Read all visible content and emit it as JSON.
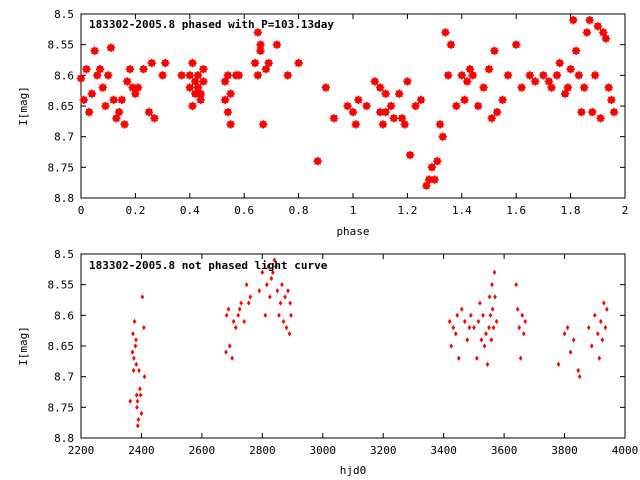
{
  "colors": {
    "marker": "#ff0000",
    "axis": "#000000",
    "background": "#ffffff"
  },
  "chart_data": [
    {
      "type": "scatter",
      "title": "183302-2005.8 phased with P=103.13day",
      "xlabel": "phase",
      "ylabel": "I[mag]",
      "xlim": [
        0,
        2
      ],
      "ylim": [
        8.5,
        8.8
      ],
      "y_inverted": true,
      "grid": false,
      "marker": "filled-star",
      "xticks": [
        0,
        0.2,
        0.4,
        0.6,
        0.8,
        1,
        1.2,
        1.4,
        1.6,
        1.8,
        2
      ],
      "xtick_labels": [
        "0",
        "0.2",
        "0.4",
        "0.6",
        "0.8",
        "1",
        "1.2",
        "1.4",
        "1.6",
        "1.8",
        "2"
      ],
      "yticks": [
        8.5,
        8.55,
        8.6,
        8.65,
        8.7,
        8.75,
        8.8
      ],
      "ytick_labels": [
        "8.5",
        "8.55",
        "8.6",
        "8.65",
        "8.7",
        "8.75",
        "8.8"
      ],
      "series": [
        {
          "x": [
            0.0,
            0.01,
            0.02,
            0.03,
            0.04,
            0.05,
            0.06,
            0.07,
            0.08,
            0.09,
            0.1,
            0.11,
            0.12,
            0.13,
            0.14,
            0.15,
            0.16,
            0.17,
            0.18,
            0.19,
            0.2,
            0.21,
            0.23,
            0.25,
            0.26,
            0.27,
            0.3,
            0.31,
            0.37,
            0.4,
            0.4,
            0.41,
            0.41,
            0.42,
            0.42,
            0.43,
            0.43,
            0.44,
            0.44,
            0.45,
            0.45,
            0.53,
            0.53,
            0.54,
            0.54,
            0.55,
            0.55,
            0.57,
            0.58,
            0.64,
            0.65,
            0.65,
            0.66,
            0.66,
            0.67,
            0.68,
            0.69,
            0.72,
            0.76,
            0.8,
            0.87,
            0.9,
            0.93,
            0.98,
            1.0,
            1.01,
            1.02,
            1.05,
            1.08,
            1.1,
            1.1,
            1.11,
            1.12,
            1.12,
            1.14,
            1.15,
            1.17,
            1.18,
            1.19,
            1.2,
            1.21,
            1.23,
            1.25,
            1.27,
            1.28,
            1.29,
            1.3,
            1.31,
            1.32,
            1.33,
            1.34,
            1.35,
            1.36,
            1.38,
            1.4,
            1.41,
            1.42,
            1.43,
            1.44,
            1.46,
            1.48,
            1.5,
            1.51,
            1.52,
            1.53,
            1.55,
            1.57,
            1.6,
            1.62,
            1.65,
            1.67,
            1.7,
            1.72,
            1.73,
            1.75,
            1.76,
            1.78,
            1.79,
            1.8,
            1.81,
            1.82,
            1.83,
            1.84,
            1.85,
            1.86,
            1.87,
            1.88,
            1.89,
            1.9,
            1.91,
            1.92,
            1.93,
            1.94,
            1.95,
            1.96
          ],
          "y": [
            8.605,
            8.64,
            8.59,
            8.66,
            8.63,
            8.56,
            8.6,
            8.59,
            8.62,
            8.65,
            8.6,
            8.555,
            8.64,
            8.67,
            8.66,
            8.64,
            8.68,
            8.61,
            8.59,
            8.62,
            8.63,
            8.62,
            8.59,
            8.66,
            8.58,
            8.67,
            8.6,
            8.58,
            8.6,
            8.62,
            8.6,
            8.65,
            8.58,
            8.63,
            8.61,
            8.62,
            8.6,
            8.64,
            8.63,
            8.61,
            8.59,
            8.61,
            8.64,
            8.66,
            8.6,
            8.68,
            8.63,
            8.6,
            8.6,
            8.58,
            8.53,
            8.6,
            8.55,
            8.56,
            8.68,
            8.59,
            8.58,
            8.55,
            8.6,
            8.58,
            8.74,
            8.62,
            8.67,
            8.65,
            8.66,
            8.68,
            8.64,
            8.65,
            8.61,
            8.62,
            8.66,
            8.68,
            8.63,
            8.66,
            8.65,
            8.67,
            8.63,
            8.67,
            8.68,
            8.61,
            8.73,
            8.65,
            8.64,
            8.78,
            8.77,
            8.75,
            8.77,
            8.74,
            8.68,
            8.7,
            8.53,
            8.6,
            8.55,
            8.65,
            8.6,
            8.64,
            8.61,
            8.59,
            8.6,
            8.65,
            8.62,
            8.59,
            8.67,
            8.56,
            8.66,
            8.64,
            8.6,
            8.55,
            8.62,
            8.6,
            8.61,
            8.6,
            8.61,
            8.62,
            8.6,
            8.58,
            8.63,
            8.62,
            8.59,
            8.51,
            8.56,
            8.6,
            8.66,
            8.62,
            8.53,
            8.51,
            8.66,
            8.6,
            8.52,
            8.67,
            8.53,
            8.54,
            8.62,
            8.64,
            8.66
          ]
        }
      ]
    },
    {
      "type": "scatter",
      "title": "183302-2005.8 not phased light curve",
      "xlabel": "hjd0",
      "ylabel": "I[mag]",
      "xlim": [
        2200,
        4000
      ],
      "ylim": [
        8.5,
        8.8
      ],
      "y_inverted": true,
      "grid": false,
      "marker": "filled-diamond",
      "xticks": [
        2200,
        2400,
        2600,
        2800,
        3000,
        3200,
        3400,
        3600,
        3800,
        4000
      ],
      "xtick_labels": [
        "2200",
        "2400",
        "2600",
        "2800",
        "3000",
        "3200",
        "3400",
        "3600",
        "3800",
        "4000"
      ],
      "yticks": [
        8.5,
        8.55,
        8.6,
        8.65,
        8.7,
        8.75,
        8.8
      ],
      "ytick_labels": [
        "8.5",
        "8.55",
        "8.6",
        "8.65",
        "8.7",
        "8.75",
        "8.8"
      ],
      "series": [
        {
          "x": [
            2363,
            2370,
            2372,
            2374,
            2375,
            2377,
            2380,
            2382,
            2383,
            2384,
            2385,
            2387,
            2388,
            2390,
            2392,
            2395,
            2397,
            2400,
            2403,
            2408,
            2410,
            2680,
            2682,
            2688,
            2692,
            2700,
            2705,
            2712,
            2720,
            2725,
            2730,
            2740,
            2748,
            2755,
            2760,
            2790,
            2800,
            2810,
            2815,
            2820,
            2825,
            2830,
            2835,
            2840,
            2845,
            2850,
            2855,
            2860,
            2865,
            2870,
            2875,
            2880,
            2885,
            2890,
            2892,
            2895,
            3420,
            3425,
            3432,
            3440,
            3445,
            3450,
            3460,
            3470,
            3478,
            3485,
            3490,
            3500,
            3510,
            3515,
            3520,
            3525,
            3530,
            3535,
            3540,
            3545,
            3550,
            3552,
            3555,
            3558,
            3560,
            3562,
            3565,
            3568,
            3570,
            3575,
            3640,
            3645,
            3650,
            3655,
            3660,
            3665,
            3670,
            3780,
            3800,
            3810,
            3820,
            3830,
            3845,
            3850,
            3880,
            3890,
            3900,
            3910,
            3915,
            3920,
            3925,
            3930,
            3935,
            3940
          ],
          "y": [
            8.74,
            8.66,
            8.63,
            8.69,
            8.67,
            8.61,
            8.65,
            8.64,
            8.68,
            8.73,
            8.75,
            8.74,
            8.78,
            8.77,
            8.69,
            8.72,
            8.73,
            8.76,
            8.57,
            8.62,
            8.7,
            8.66,
            8.6,
            8.59,
            8.65,
            8.67,
            8.61,
            8.62,
            8.6,
            8.59,
            8.58,
            8.61,
            8.55,
            8.58,
            8.57,
            8.56,
            8.53,
            8.6,
            8.55,
            8.52,
            8.57,
            8.54,
            8.53,
            8.51,
            8.52,
            8.56,
            8.6,
            8.58,
            8.55,
            8.61,
            8.57,
            8.62,
            8.56,
            8.63,
            8.58,
            8.6,
            8.61,
            8.65,
            8.62,
            8.63,
            8.6,
            8.67,
            8.59,
            8.61,
            8.64,
            8.62,
            8.6,
            8.62,
            8.67,
            8.61,
            8.58,
            8.64,
            8.6,
            8.65,
            8.63,
            8.68,
            8.62,
            8.57,
            8.6,
            8.64,
            8.55,
            8.59,
            8.62,
            8.53,
            8.57,
            8.61,
            8.55,
            8.59,
            8.62,
            8.67,
            8.6,
            8.63,
            8.61,
            8.68,
            8.63,
            8.62,
            8.66,
            8.64,
            8.69,
            8.7,
            8.62,
            8.65,
            8.6,
            8.63,
            8.67,
            8.61,
            8.64,
            8.58,
            8.62,
            8.59
          ]
        }
      ]
    }
  ]
}
